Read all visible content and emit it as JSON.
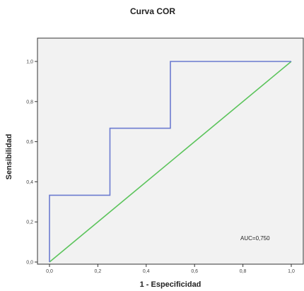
{
  "chart_data": {
    "type": "line",
    "title": "Curva COR",
    "xlabel": "1 - Especificidad",
    "ylabel": "Sensibilidad",
    "xlim": [
      0,
      1
    ],
    "ylim": [
      0,
      1
    ],
    "x_ticks": [
      "0,0",
      "0,2",
      "0,4",
      "0,6",
      "0,8",
      "1,0"
    ],
    "y_ticks": [
      "0,0",
      "0,2",
      "0,4",
      "0,6",
      "0,8",
      "1,0"
    ],
    "series": [
      {
        "color": "#6b7bd0",
        "x": [
          0,
          0,
          0.25,
          0.25,
          0.5,
          0.5,
          1.0
        ],
        "y": [
          0,
          0.333,
          0.333,
          0.667,
          0.667,
          1.0,
          1.0
        ]
      },
      {
        "color": "#5cc45c",
        "x": [
          0,
          1
        ],
        "y": [
          0,
          1
        ]
      }
    ],
    "annotation": "AUC=0,750",
    "grid": false,
    "background": "#f2f2f2"
  }
}
